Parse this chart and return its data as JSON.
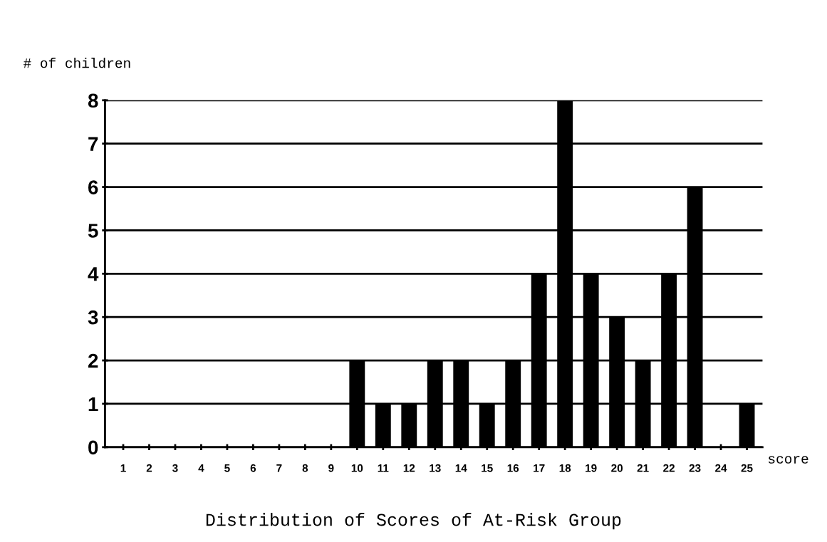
{
  "chart_data": {
    "type": "bar",
    "title": "Distribution of Scores of At-Risk Group",
    "xlabel": "score",
    "ylabel": "# of children",
    "categories": [
      "1",
      "2",
      "3",
      "4",
      "5",
      "6",
      "7",
      "8",
      "9",
      "10",
      "11",
      "12",
      "13",
      "14",
      "15",
      "16",
      "17",
      "18",
      "19",
      "20",
      "21",
      "22",
      "23",
      "24",
      "25"
    ],
    "values": [
      0,
      0,
      0,
      0,
      0,
      0,
      0,
      0,
      0,
      2,
      1,
      1,
      2,
      2,
      1,
      2,
      4,
      8,
      4,
      3,
      2,
      4,
      6,
      0,
      1
    ],
    "color": "#000000",
    "ylim": [
      0,
      8
    ],
    "yticks": [
      0,
      1,
      2,
      3,
      4,
      5,
      6,
      7,
      8
    ],
    "grid": "y"
  }
}
